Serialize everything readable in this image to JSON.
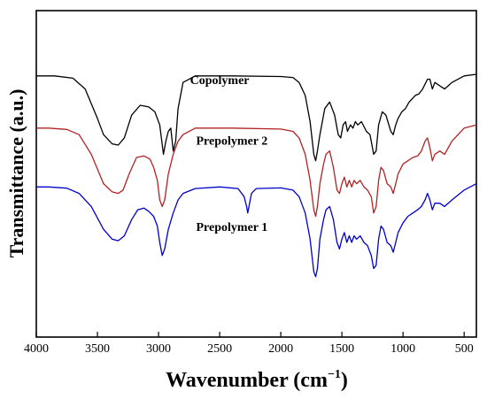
{
  "chart_data": {
    "type": "line",
    "title": "",
    "xlabel": "Wavenumber (cm",
    "xlabel_superscript": "−1",
    "xlabel_suffix": ")",
    "ylabel": "Transmittance (a.u.)",
    "xlim": [
      4000,
      400
    ],
    "x_reversed": true,
    "x_ticks": [
      4000,
      3500,
      3000,
      2500,
      2000,
      1500,
      1000,
      500
    ],
    "y_ticks_shown": false,
    "grid": false,
    "legend": "none",
    "series": [
      {
        "name": "Copolymer",
        "color": "#000000",
        "points": [
          [
            4000,
            0.8
          ],
          [
            3850,
            0.8
          ],
          [
            3700,
            0.793
          ],
          [
            3600,
            0.76
          ],
          [
            3500,
            0.67
          ],
          [
            3450,
            0.62
          ],
          [
            3380,
            0.592
          ],
          [
            3330,
            0.588
          ],
          [
            3280,
            0.61
          ],
          [
            3220,
            0.68
          ],
          [
            3150,
            0.71
          ],
          [
            3080,
            0.705
          ],
          [
            3030,
            0.69
          ],
          [
            2990,
            0.65
          ],
          [
            2960,
            0.56
          ],
          [
            2940,
            0.6
          ],
          [
            2920,
            0.63
          ],
          [
            2900,
            0.64
          ],
          [
            2880,
            0.57
          ],
          [
            2860,
            0.6
          ],
          [
            2840,
            0.7
          ],
          [
            2800,
            0.78
          ],
          [
            2700,
            0.8
          ],
          [
            2400,
            0.8
          ],
          [
            2000,
            0.798
          ],
          [
            1900,
            0.795
          ],
          [
            1850,
            0.78
          ],
          [
            1800,
            0.74
          ],
          [
            1760,
            0.66
          ],
          [
            1730,
            0.56
          ],
          [
            1715,
            0.54
          ],
          [
            1700,
            0.57
          ],
          [
            1680,
            0.62
          ],
          [
            1640,
            0.7
          ],
          [
            1600,
            0.72
          ],
          [
            1560,
            0.68
          ],
          [
            1530,
            0.62
          ],
          [
            1510,
            0.61
          ],
          [
            1490,
            0.65
          ],
          [
            1470,
            0.66
          ],
          [
            1455,
            0.63
          ],
          [
            1430,
            0.65
          ],
          [
            1410,
            0.64
          ],
          [
            1390,
            0.66
          ],
          [
            1370,
            0.65
          ],
          [
            1340,
            0.66
          ],
          [
            1300,
            0.63
          ],
          [
            1270,
            0.62
          ],
          [
            1240,
            0.56
          ],
          [
            1220,
            0.57
          ],
          [
            1200,
            0.65
          ],
          [
            1170,
            0.69
          ],
          [
            1140,
            0.68
          ],
          [
            1100,
            0.63
          ],
          [
            1080,
            0.62
          ],
          [
            1060,
            0.65
          ],
          [
            1040,
            0.67
          ],
          [
            1010,
            0.69
          ],
          [
            980,
            0.7
          ],
          [
            950,
            0.72
          ],
          [
            900,
            0.74
          ],
          [
            870,
            0.745
          ],
          [
            840,
            0.76
          ],
          [
            800,
            0.79
          ],
          [
            780,
            0.79
          ],
          [
            760,
            0.76
          ],
          [
            740,
            0.78
          ],
          [
            700,
            0.77
          ],
          [
            660,
            0.76
          ],
          [
            600,
            0.78
          ],
          [
            500,
            0.8
          ],
          [
            400,
            0.805
          ]
        ]
      },
      {
        "name": "Prepolymer 2",
        "color": "#b22222",
        "points": [
          [
            4000,
            0.64
          ],
          [
            3900,
            0.64
          ],
          [
            3750,
            0.636
          ],
          [
            3650,
            0.62
          ],
          [
            3550,
            0.56
          ],
          [
            3450,
            0.47
          ],
          [
            3380,
            0.445
          ],
          [
            3330,
            0.44
          ],
          [
            3290,
            0.45
          ],
          [
            3240,
            0.5
          ],
          [
            3180,
            0.55
          ],
          [
            3120,
            0.555
          ],
          [
            3070,
            0.545
          ],
          [
            3040,
            0.52
          ],
          [
            3010,
            0.48
          ],
          [
            2990,
            0.42
          ],
          [
            2970,
            0.4
          ],
          [
            2950,
            0.42
          ],
          [
            2920,
            0.5
          ],
          [
            2880,
            0.56
          ],
          [
            2840,
            0.6
          ],
          [
            2800,
            0.62
          ],
          [
            2700,
            0.64
          ],
          [
            2400,
            0.64
          ],
          [
            2000,
            0.637
          ],
          [
            1900,
            0.63
          ],
          [
            1850,
            0.61
          ],
          [
            1800,
            0.56
          ],
          [
            1760,
            0.48
          ],
          [
            1730,
            0.39
          ],
          [
            1715,
            0.37
          ],
          [
            1700,
            0.4
          ],
          [
            1680,
            0.47
          ],
          [
            1650,
            0.53
          ],
          [
            1630,
            0.56
          ],
          [
            1600,
            0.57
          ],
          [
            1570,
            0.52
          ],
          [
            1540,
            0.45
          ],
          [
            1520,
            0.44
          ],
          [
            1500,
            0.47
          ],
          [
            1480,
            0.49
          ],
          [
            1460,
            0.46
          ],
          [
            1440,
            0.48
          ],
          [
            1420,
            0.46
          ],
          [
            1400,
            0.48
          ],
          [
            1380,
            0.47
          ],
          [
            1350,
            0.48
          ],
          [
            1320,
            0.46
          ],
          [
            1290,
            0.45
          ],
          [
            1260,
            0.43
          ],
          [
            1240,
            0.38
          ],
          [
            1220,
            0.4
          ],
          [
            1200,
            0.48
          ],
          [
            1180,
            0.52
          ],
          [
            1160,
            0.51
          ],
          [
            1130,
            0.47
          ],
          [
            1100,
            0.46
          ],
          [
            1080,
            0.44
          ],
          [
            1060,
            0.47
          ],
          [
            1040,
            0.5
          ],
          [
            1000,
            0.53
          ],
          [
            960,
            0.54
          ],
          [
            920,
            0.55
          ],
          [
            880,
            0.555
          ],
          [
            850,
            0.57
          ],
          [
            820,
            0.6
          ],
          [
            800,
            0.61
          ],
          [
            780,
            0.58
          ],
          [
            760,
            0.54
          ],
          [
            740,
            0.56
          ],
          [
            700,
            0.57
          ],
          [
            660,
            0.56
          ],
          [
            600,
            0.6
          ],
          [
            500,
            0.64
          ],
          [
            400,
            0.65
          ]
        ]
      },
      {
        "name": "Prepolymer 1",
        "color": "#0000cc",
        "points": [
          [
            4000,
            0.46
          ],
          [
            3900,
            0.46
          ],
          [
            3750,
            0.456
          ],
          [
            3650,
            0.44
          ],
          [
            3550,
            0.4
          ],
          [
            3450,
            0.33
          ],
          [
            3380,
            0.3
          ],
          [
            3330,
            0.295
          ],
          [
            3280,
            0.31
          ],
          [
            3220,
            0.36
          ],
          [
            3170,
            0.39
          ],
          [
            3120,
            0.395
          ],
          [
            3080,
            0.385
          ],
          [
            3040,
            0.37
          ],
          [
            3010,
            0.34
          ],
          [
            2990,
            0.29
          ],
          [
            2970,
            0.25
          ],
          [
            2950,
            0.27
          ],
          [
            2920,
            0.33
          ],
          [
            2880,
            0.38
          ],
          [
            2840,
            0.42
          ],
          [
            2800,
            0.44
          ],
          [
            2700,
            0.455
          ],
          [
            2500,
            0.46
          ],
          [
            2350,
            0.455
          ],
          [
            2300,
            0.43
          ],
          [
            2280,
            0.4
          ],
          [
            2270,
            0.38
          ],
          [
            2260,
            0.4
          ],
          [
            2240,
            0.44
          ],
          [
            2200,
            0.455
          ],
          [
            2000,
            0.457
          ],
          [
            1900,
            0.45
          ],
          [
            1850,
            0.43
          ],
          [
            1800,
            0.38
          ],
          [
            1760,
            0.3
          ],
          [
            1730,
            0.2
          ],
          [
            1715,
            0.185
          ],
          [
            1700,
            0.21
          ],
          [
            1680,
            0.3
          ],
          [
            1650,
            0.36
          ],
          [
            1630,
            0.39
          ],
          [
            1600,
            0.4
          ],
          [
            1570,
            0.36
          ],
          [
            1540,
            0.29
          ],
          [
            1520,
            0.27
          ],
          [
            1500,
            0.3
          ],
          [
            1480,
            0.32
          ],
          [
            1460,
            0.29
          ],
          [
            1440,
            0.31
          ],
          [
            1420,
            0.29
          ],
          [
            1400,
            0.31
          ],
          [
            1380,
            0.3
          ],
          [
            1350,
            0.31
          ],
          [
            1320,
            0.29
          ],
          [
            1290,
            0.28
          ],
          [
            1260,
            0.25
          ],
          [
            1240,
            0.21
          ],
          [
            1220,
            0.22
          ],
          [
            1200,
            0.3
          ],
          [
            1180,
            0.34
          ],
          [
            1160,
            0.33
          ],
          [
            1130,
            0.29
          ],
          [
            1100,
            0.28
          ],
          [
            1080,
            0.26
          ],
          [
            1060,
            0.29
          ],
          [
            1040,
            0.32
          ],
          [
            1000,
            0.35
          ],
          [
            960,
            0.37
          ],
          [
            920,
            0.38
          ],
          [
            880,
            0.39
          ],
          [
            850,
            0.4
          ],
          [
            820,
            0.42
          ],
          [
            800,
            0.44
          ],
          [
            780,
            0.42
          ],
          [
            760,
            0.39
          ],
          [
            740,
            0.41
          ],
          [
            700,
            0.41
          ],
          [
            660,
            0.4
          ],
          [
            600,
            0.42
          ],
          [
            500,
            0.45
          ],
          [
            400,
            0.47
          ]
        ]
      }
    ],
    "annotations": [
      {
        "text": "Copolymer",
        "x": 2500,
        "y": 0.775
      },
      {
        "text": "Prepolymer 2",
        "x": 2400,
        "y": 0.59
      },
      {
        "text": "Prepolymer 1",
        "x": 2400,
        "y": 0.325
      }
    ]
  }
}
